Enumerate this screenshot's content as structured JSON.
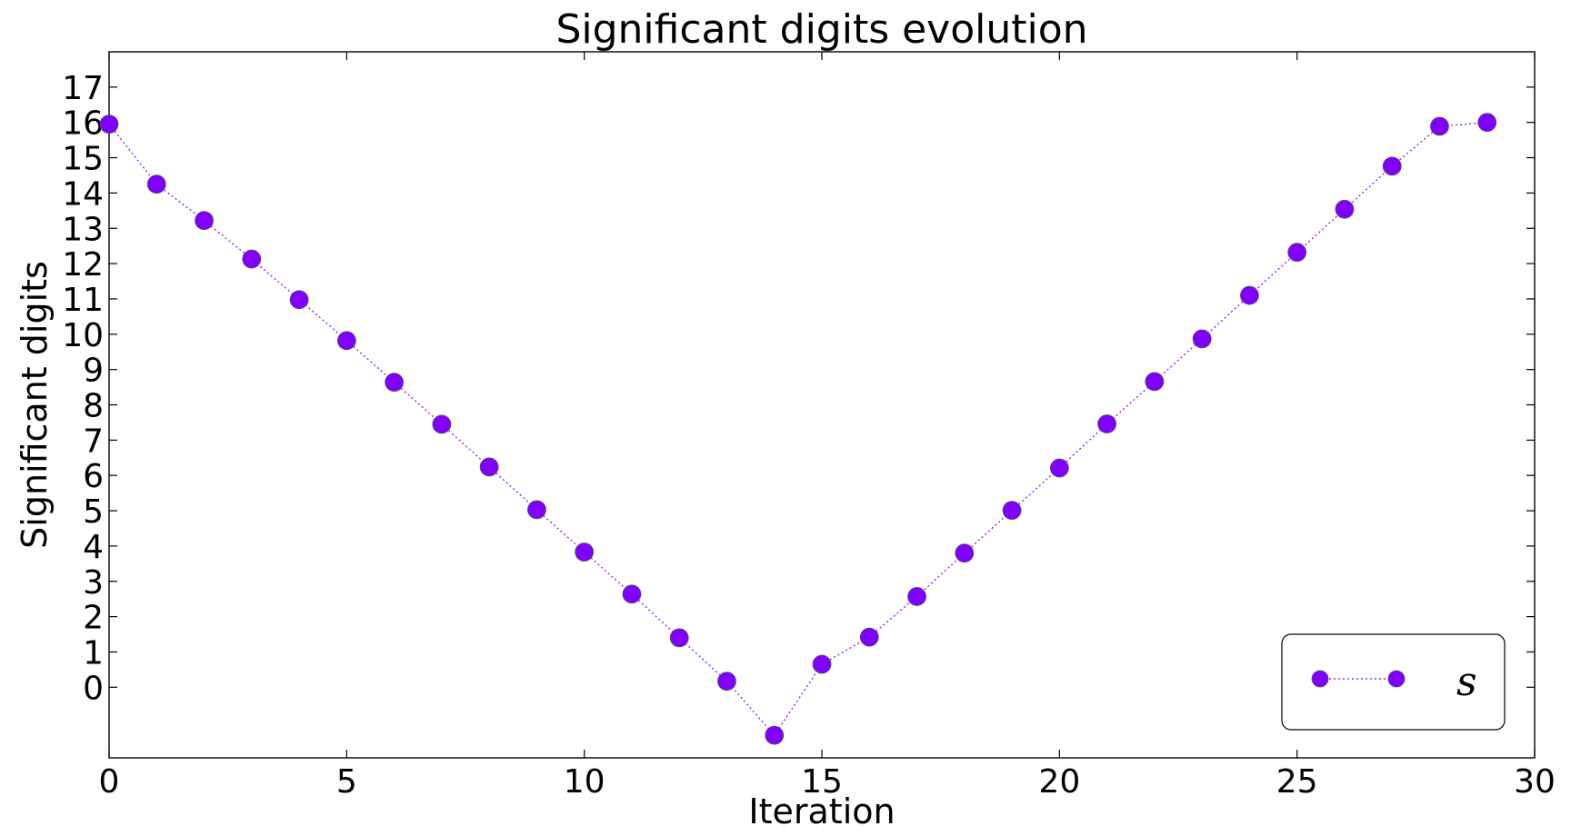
{
  "chart_data": {
    "type": "line",
    "title": "Significant digits evolution",
    "xlabel": "Iteration",
    "ylabel": "Significant digits",
    "xlim": [
      0,
      30
    ],
    "ylim": [
      -2,
      18
    ],
    "x_ticks": [
      "0",
      "5",
      "10",
      "15",
      "20",
      "25",
      "30"
    ],
    "x_tick_values": [
      0,
      5,
      10,
      15,
      20,
      25,
      30
    ],
    "y_ticks": [
      "0",
      "1",
      "2",
      "3",
      "4",
      "5",
      "6",
      "7",
      "8",
      "9",
      "10",
      "11",
      "12",
      "13",
      "14",
      "15",
      "16",
      "17"
    ],
    "y_tick_values": [
      0,
      1,
      2,
      3,
      4,
      5,
      6,
      7,
      8,
      9,
      10,
      11,
      12,
      13,
      14,
      15,
      16,
      17
    ],
    "grid": false,
    "legend_position": "bottom-right",
    "series": [
      {
        "name": "s",
        "color": "#7f00ff",
        "line_style": "dotted",
        "marker": "circle",
        "x": [
          0,
          1,
          2,
          3,
          4,
          5,
          6,
          7,
          8,
          9,
          10,
          11,
          12,
          13,
          14,
          15,
          16,
          17,
          18,
          19,
          20,
          21,
          22,
          23,
          24,
          25,
          26,
          27,
          28,
          29
        ],
        "y": [
          15.95,
          14.25,
          13.22,
          12.13,
          10.98,
          9.82,
          8.64,
          7.45,
          6.24,
          5.03,
          3.83,
          2.64,
          1.4,
          0.17,
          -1.36,
          0.65,
          1.42,
          2.57,
          3.8,
          5.01,
          6.21,
          7.46,
          8.66,
          9.87,
          11.1,
          12.32,
          13.54,
          14.76,
          15.89,
          16.0
        ]
      }
    ]
  }
}
